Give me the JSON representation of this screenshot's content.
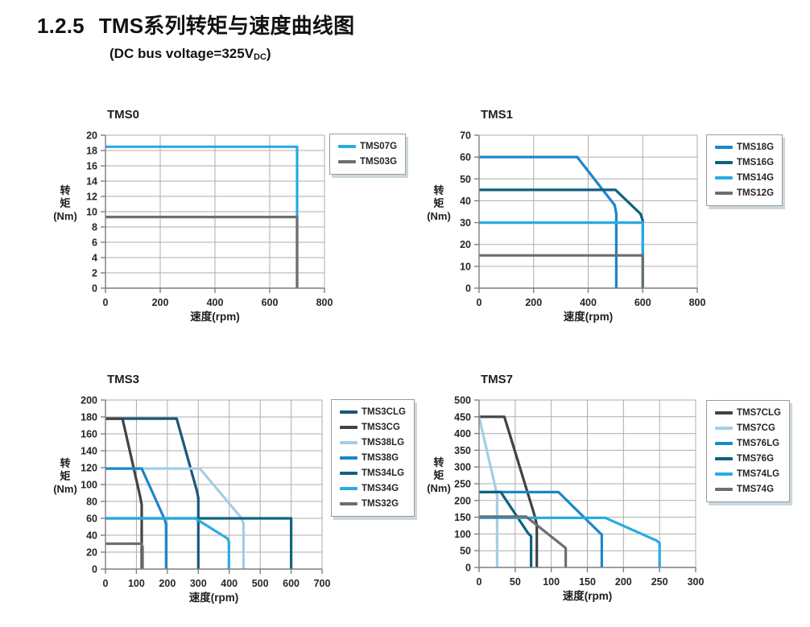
{
  "page": {
    "section_number": "1.2.5",
    "title": "TMS系列转矩与速度曲线图",
    "subtitle": {
      "prefix": "(DC bus voltage=325V",
      "subscript": "DC",
      "suffix": ")"
    }
  },
  "chart_data": [
    {
      "title": "TMS0",
      "type": "line",
      "xlabel": "速度(rpm)",
      "ylabel": "转矩(Nm)",
      "ylabel_lines": [
        "转",
        "矩",
        "(Nm)"
      ],
      "xlim": [
        0,
        800
      ],
      "ylim": [
        0,
        20
      ],
      "xticks": [
        0,
        200,
        400,
        600,
        800
      ],
      "yticks": [
        0,
        2,
        4,
        6,
        8,
        10,
        12,
        14,
        16,
        18,
        20
      ],
      "grid": true,
      "legend_position": "outside-top-right",
      "series": [
        {
          "name": "TMS07G",
          "color": "#29ABE2",
          "points": [
            [
              0,
              18.5
            ],
            [
              700,
              18.5
            ],
            [
              700,
              0
            ]
          ]
        },
        {
          "name": "TMS03G",
          "color": "#6D6E71",
          "points": [
            [
              0,
              9.3
            ],
            [
              700,
              9.3
            ],
            [
              700,
              0
            ]
          ]
        }
      ]
    },
    {
      "title": "TMS1",
      "type": "line",
      "xlabel": "速度(rpm)",
      "ylabel": "转矩(Nm)",
      "ylabel_lines": [
        "转",
        "矩",
        "(Nm)"
      ],
      "xlim": [
        0,
        800
      ],
      "ylim": [
        0,
        70
      ],
      "xticks": [
        0,
        200,
        400,
        600,
        800
      ],
      "yticks": [
        0,
        10,
        20,
        30,
        40,
        50,
        60,
        70
      ],
      "grid": true,
      "legend_position": "outside-top-right",
      "series": [
        {
          "name": "TMS18G",
          "color": "#1D86C8",
          "points": [
            [
              0,
              60
            ],
            [
              360,
              60
            ],
            [
              497,
              38
            ],
            [
              503,
              34
            ],
            [
              503,
              0
            ]
          ]
        },
        {
          "name": "TMS16G",
          "color": "#0F617F",
          "points": [
            [
              0,
              45
            ],
            [
              500,
              45
            ],
            [
              592,
              34
            ],
            [
              600,
              31
            ],
            [
              600,
              0
            ]
          ]
        },
        {
          "name": "TMS14G",
          "color": "#29ABE2",
          "points": [
            [
              0,
              30
            ],
            [
              600,
              30
            ],
            [
              600,
              0
            ]
          ]
        },
        {
          "name": "TMS12G",
          "color": "#6D6E71",
          "points": [
            [
              0,
              15
            ],
            [
              600,
              15
            ],
            [
              600,
              0
            ]
          ]
        }
      ]
    },
    {
      "title": "TMS3",
      "type": "line",
      "xlabel": "速度(rpm)",
      "ylabel": "转矩(Nm)",
      "ylabel_lines": [
        "转",
        "矩",
        "(Nm)"
      ],
      "xlim": [
        0,
        700
      ],
      "ylim": [
        0,
        200
      ],
      "xticks": [
        0,
        100,
        200,
        300,
        400,
        500,
        600,
        700
      ],
      "yticks": [
        0,
        20,
        40,
        60,
        80,
        100,
        120,
        140,
        160,
        180,
        200
      ],
      "grid": true,
      "legend_position": "outside-top-right",
      "series": [
        {
          "name": "TMS3CLG",
          "color": "#1B5878",
          "points": [
            [
              0,
              178
            ],
            [
              230,
              178
            ],
            [
              296,
              92
            ],
            [
              300,
              84
            ],
            [
              300,
              0
            ]
          ]
        },
        {
          "name": "TMS3CG",
          "color": "#404246",
          "points": [
            [
              0,
              178
            ],
            [
              55,
              178
            ],
            [
              112,
              86
            ],
            [
              117,
              76
            ],
            [
              117,
              0
            ]
          ]
        },
        {
          "name": "TMS38LG",
          "color": "#A5CDE6",
          "points": [
            [
              0,
              119
            ],
            [
              305,
              119
            ],
            [
              438,
              61
            ],
            [
              446,
              54
            ],
            [
              446,
              0
            ]
          ]
        },
        {
          "name": "TMS38G",
          "color": "#1D86C8",
          "points": [
            [
              0,
              119
            ],
            [
              117,
              119
            ],
            [
              191,
              59
            ],
            [
              196,
              53
            ],
            [
              196,
              0
            ]
          ]
        },
        {
          "name": "TMS34LG",
          "color": "#10627F",
          "points": [
            [
              0,
              60
            ],
            [
              600,
              60
            ],
            [
              600,
              0
            ]
          ]
        },
        {
          "name": "TMS34G",
          "color": "#29ABE2",
          "points": [
            [
              0,
              60
            ],
            [
              290,
              60
            ],
            [
              395,
              36
            ],
            [
              399,
              32
            ],
            [
              399,
              0
            ]
          ]
        },
        {
          "name": "TMS32G",
          "color": "#6D6E71",
          "points": [
            [
              0,
              30
            ],
            [
              116,
              30
            ],
            [
              120,
              26
            ],
            [
              120,
              0
            ]
          ]
        }
      ]
    },
    {
      "title": "TMS7",
      "type": "line",
      "xlabel": "速度(rpm)",
      "ylabel": "转矩(Nm)",
      "ylabel_lines": [
        "转",
        "矩",
        "(Nm)"
      ],
      "xlim": [
        0,
        300
      ],
      "ylim": [
        0,
        500
      ],
      "xticks": [
        0,
        50,
        100,
        150,
        200,
        250,
        300
      ],
      "yticks": [
        0,
        50,
        100,
        150,
        200,
        250,
        300,
        350,
        400,
        450,
        500
      ],
      "grid": true,
      "legend_position": "outside-top-right",
      "series": [
        {
          "name": "TMS7CLG",
          "color": "#404246",
          "points": [
            [
              0,
              450
            ],
            [
              35,
              450
            ],
            [
              76,
              162
            ],
            [
              80,
              128
            ],
            [
              80,
              0
            ]
          ]
        },
        {
          "name": "TMS7CG",
          "color": "#A5CDE6",
          "points": [
            [
              0,
              450
            ],
            [
              22,
              245
            ],
            [
              25,
              215
            ],
            [
              25,
              0
            ]
          ]
        },
        {
          "name": "TMS76LG",
          "color": "#1D86C8",
          "points": [
            [
              0,
              225
            ],
            [
              110,
              225
            ],
            [
              166,
              106
            ],
            [
              170,
              98
            ],
            [
              170,
              0
            ]
          ]
        },
        {
          "name": "TMS76G",
          "color": "#0F617F",
          "points": [
            [
              0,
              225
            ],
            [
              30,
              225
            ],
            [
              68,
              102
            ],
            [
              72,
              93
            ],
            [
              72,
              0
            ]
          ]
        },
        {
          "name": "TMS74LG",
          "color": "#29ABE2",
          "points": [
            [
              0,
              148
            ],
            [
              175,
              148
            ],
            [
              246,
              80
            ],
            [
              250,
              73
            ],
            [
              250,
              0
            ]
          ]
        },
        {
          "name": "TMS74G",
          "color": "#6D6E71",
          "points": [
            [
              0,
              152
            ],
            [
              65,
              152
            ],
            [
              116,
              65
            ],
            [
              120,
              58
            ],
            [
              120,
              0
            ]
          ]
        }
      ]
    }
  ]
}
